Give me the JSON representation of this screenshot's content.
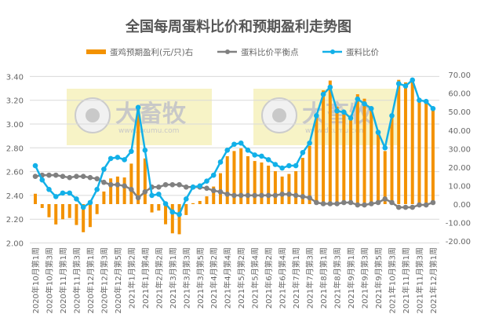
{
  "chart_data": {
    "type": "bar+line",
    "title": "全国每周蛋料比价和预期盈利走势图",
    "legend_position": "top",
    "grid": true,
    "x_tick_labels": [
      "2020年10月第1周",
      "2020年10月第3周",
      "2020年11月第1周",
      "2020年11月第3周",
      "2020年12月第1周",
      "2020年12月第3周",
      "2020年12月第5周",
      "2021年1月第2周",
      "2021年1月第4周",
      "2021年2月第2周",
      "2021年3月第1周",
      "2021年3月第3周",
      "2021年3月第5周",
      "2021年4月第2周",
      "2021年4月第4周",
      "2021年5月第2周",
      "2021年5月第4周",
      "2021年6月第2周",
      "2021年6月第4周",
      "2021年7月第1周",
      "2021年7月第3周",
      "2021年8月第1周",
      "2021年8月第3周",
      "2021年9月第1周",
      "2021年9月第3周",
      "2021年9月第5周",
      "2021年10月第3周",
      "2021年11月第1周",
      "2021年11月第3周",
      "2021年12月第1周"
    ],
    "y_left": {
      "range": [
        2.0,
        3.4
      ],
      "ticks": [
        "2.00",
        "2.20",
        "2.40",
        "2.60",
        "2.80",
        "3.00",
        "3.20",
        "3.40"
      ]
    },
    "y_right": {
      "range": [
        -20,
        70
      ],
      "ticks": [
        "-20.00",
        "-10.00",
        "0.00",
        "10.00",
        "20.00",
        "30.00",
        "40.00",
        "50.00",
        "60.00",
        "70.00"
      ]
    },
    "series": [
      {
        "name": "蛋鸡预期盈利(元/只)右",
        "type": "bar",
        "axis": "right",
        "color": "#f39200",
        "values": [
          5.6,
          -2.1,
          -7.1,
          -11,
          -8.2,
          -7.5,
          -11.3,
          -15.2,
          -12.4,
          -5.4,
          6.8,
          13.9,
          14.9,
          14.4,
          21.9,
          52.3,
          24.7,
          -4.5,
          -3.5,
          -10.9,
          -15.8,
          -16.3,
          -5.9,
          0.5,
          1.7,
          4.2,
          9.5,
          16.7,
          25.9,
          28.7,
          30.1,
          25.9,
          23.3,
          22.5,
          20.8,
          17.8,
          14.9,
          16.3,
          17.8,
          25,
          31.5,
          48.8,
          61.5,
          66.8,
          52.8,
          48.5,
          47.4,
          59.4,
          57,
          52.8,
          40,
          28.7,
          47.1,
          67.2,
          65.8,
          67.5,
          57,
          56.2,
          51.9
        ]
      },
      {
        "name": "蛋料比价平衡点",
        "type": "line",
        "axis": "left",
        "color": "#808080",
        "values": [
          2.56,
          2.57,
          2.57,
          2.57,
          2.56,
          2.55,
          2.56,
          2.56,
          2.55,
          2.54,
          2.51,
          2.49,
          2.49,
          2.48,
          2.45,
          2.38,
          2.43,
          2.47,
          2.47,
          2.49,
          2.49,
          2.49,
          2.47,
          2.47,
          2.47,
          2.46,
          2.44,
          2.43,
          2.41,
          2.4,
          2.4,
          2.4,
          2.4,
          2.4,
          2.4,
          2.4,
          2.41,
          2.41,
          2.4,
          2.39,
          2.38,
          2.34,
          2.33,
          2.33,
          2.33,
          2.34,
          2.34,
          2.32,
          2.32,
          2.33,
          2.34,
          2.37,
          2.34,
          2.3,
          2.3,
          2.3,
          2.32,
          2.32,
          2.34
        ]
      },
      {
        "name": "蛋料比价",
        "type": "line",
        "axis": "left",
        "color": "#12b0e8",
        "values": [
          2.65,
          2.53,
          2.45,
          2.39,
          2.42,
          2.42,
          2.37,
          2.3,
          2.34,
          2.45,
          2.62,
          2.71,
          2.72,
          2.7,
          2.77,
          3.14,
          2.78,
          2.4,
          2.41,
          2.33,
          2.26,
          2.24,
          2.37,
          2.47,
          2.48,
          2.52,
          2.57,
          2.68,
          2.78,
          2.83,
          2.84,
          2.78,
          2.74,
          2.73,
          2.7,
          2.66,
          2.63,
          2.65,
          2.65,
          2.76,
          2.84,
          3.07,
          3.25,
          3.31,
          3.11,
          3.1,
          3.05,
          3.21,
          3.17,
          3.13,
          2.93,
          2.8,
          3.07,
          3.34,
          3.32,
          3.37,
          3.2,
          3.19,
          3.13
        ]
      }
    ]
  },
  "watermark": {
    "brand": "大畜牧",
    "url": "www.dxumu.com"
  }
}
